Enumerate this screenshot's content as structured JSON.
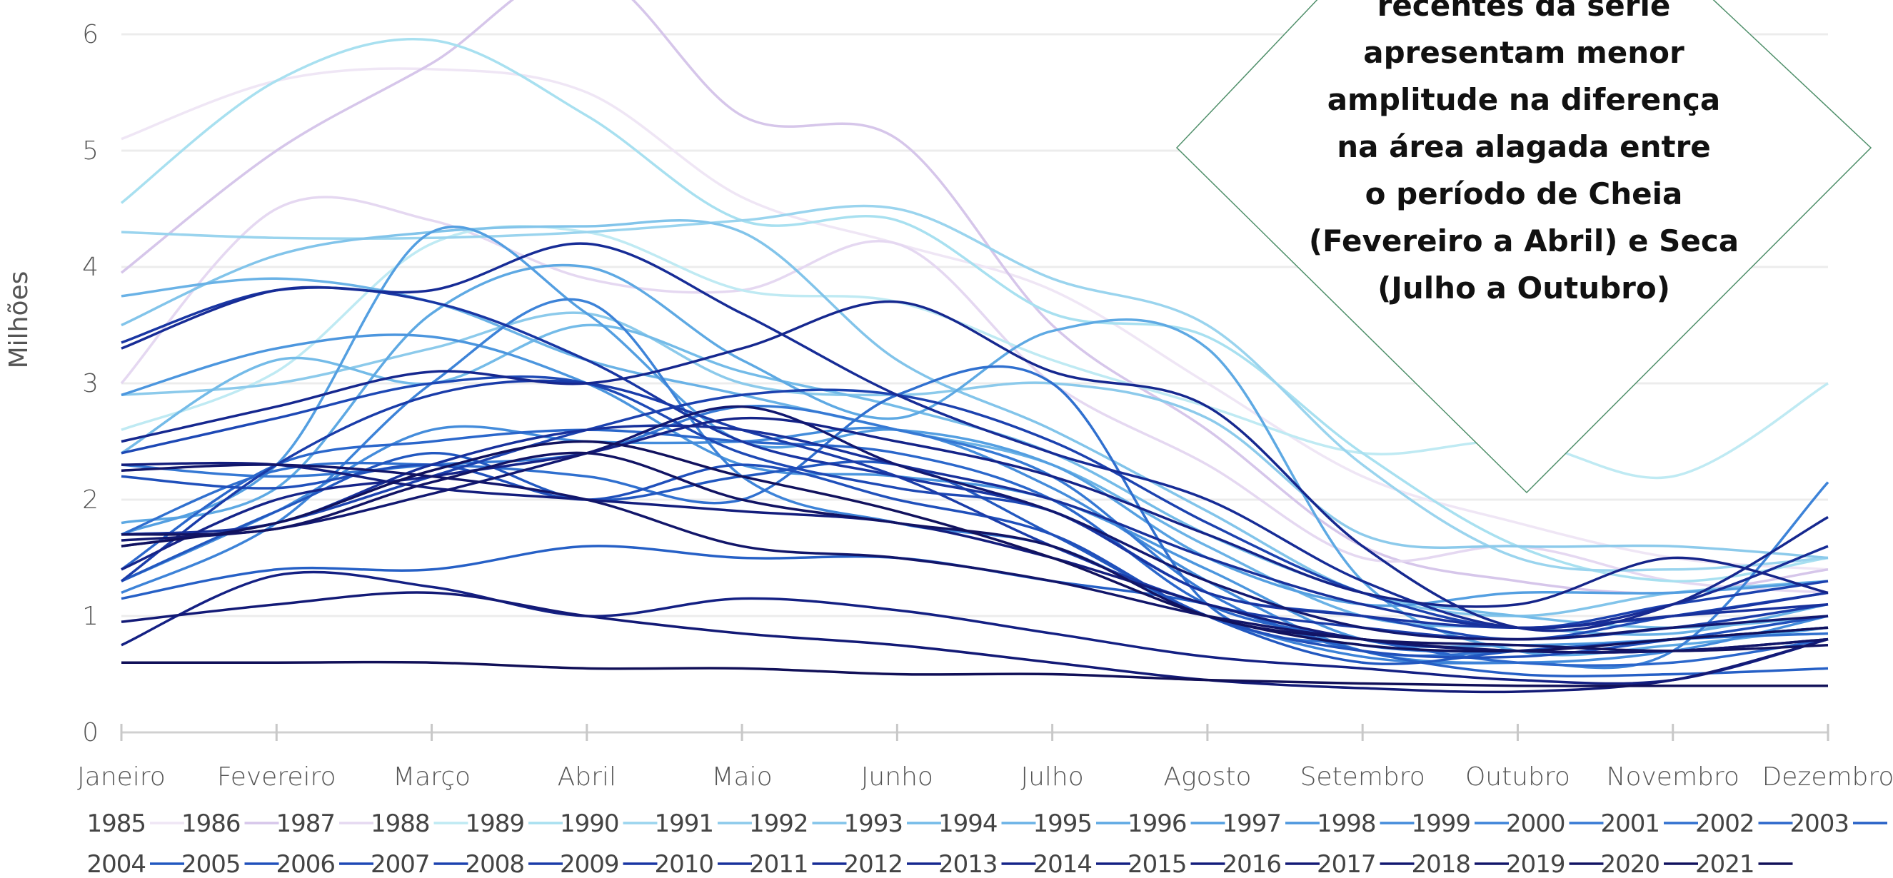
{
  "chart_data": {
    "type": "line",
    "ylabel": "Milhões",
    "ylim": [
      0,
      6
    ],
    "yticks": [
      0,
      1,
      2,
      3,
      4,
      5,
      6
    ],
    "categories": [
      "Janeiro",
      "Fevereiro",
      "Março",
      "Abril",
      "Maio",
      "Junho",
      "Julho",
      "Agosto",
      "Setembro",
      "Outubro",
      "Novembro",
      "Dezembro"
    ],
    "grid": true,
    "legend_position": "bottom",
    "annotation": [
      "recentes da série",
      "apresentam menor",
      "amplitude na diferença",
      "na área alagada entre",
      "o período de Cheia",
      "(Fevereiro a Abril) e Seca",
      "(Julho a Outubro)"
    ],
    "series": [
      {
        "name": "1985",
        "color": "#efe6f5",
        "values": [
          5.1,
          5.6,
          5.7,
          5.5,
          4.6,
          4.2,
          3.8,
          3.0,
          2.2,
          1.8,
          1.5,
          1.4
        ]
      },
      {
        "name": "1986",
        "color": "#d6c6ea",
        "values": [
          3.95,
          5.0,
          5.75,
          6.55,
          5.3,
          5.1,
          3.5,
          2.6,
          1.6,
          1.3,
          1.2,
          1.4
        ]
      },
      {
        "name": "1987",
        "color": "#e5d8f1",
        "values": [
          3.0,
          4.5,
          4.4,
          3.9,
          3.8,
          4.2,
          3.0,
          2.3,
          1.5,
          1.6,
          1.3,
          1.2
        ]
      },
      {
        "name": "1988",
        "color": "#bfeaf3",
        "values": [
          2.6,
          3.1,
          4.2,
          4.3,
          3.8,
          3.7,
          3.2,
          2.8,
          2.4,
          2.5,
          2.2,
          3.0
        ]
      },
      {
        "name": "1989",
        "color": "#a8e0f0",
        "values": [
          4.55,
          5.6,
          5.95,
          5.3,
          4.4,
          4.4,
          3.6,
          3.4,
          2.4,
          1.6,
          1.3,
          1.5
        ]
      },
      {
        "name": "1990",
        "color": "#9ad4ee",
        "values": [
          4.3,
          4.25,
          4.25,
          4.3,
          4.4,
          4.5,
          3.9,
          3.5,
          2.3,
          1.5,
          1.4,
          1.5
        ]
      },
      {
        "name": "1991",
        "color": "#8ccaeb",
        "values": [
          2.9,
          3.0,
          3.3,
          3.6,
          3.0,
          2.9,
          3.0,
          2.7,
          1.7,
          1.6,
          1.6,
          1.5
        ]
      },
      {
        "name": "1992",
        "color": "#82c4ea",
        "values": [
          3.5,
          4.1,
          4.3,
          4.35,
          4.3,
          3.2,
          2.6,
          1.9,
          1.2,
          1.0,
          1.2,
          1.3
        ]
      },
      {
        "name": "1993",
        "color": "#74bbe8",
        "values": [
          2.4,
          3.2,
          3.0,
          3.5,
          3.1,
          2.8,
          2.4,
          1.7,
          1.2,
          1.0,
          0.9,
          1.0
        ]
      },
      {
        "name": "1994",
        "color": "#6ab2e6",
        "values": [
          3.75,
          3.9,
          3.7,
          3.2,
          2.9,
          2.6,
          2.3,
          1.6,
          1.0,
          0.9,
          0.85,
          1.1
        ]
      },
      {
        "name": "1995",
        "color": "#5ea9e3",
        "values": [
          1.8,
          2.1,
          3.6,
          4.0,
          3.2,
          2.7,
          3.45,
          3.3,
          1.3,
          0.7,
          0.75,
          0.9
        ]
      },
      {
        "name": "1996",
        "color": "#549fe1",
        "values": [
          1.7,
          2.3,
          4.3,
          3.6,
          2.5,
          2.6,
          2.3,
          1.5,
          1.1,
          1.2,
          1.2,
          1.3
        ]
      },
      {
        "name": "1997",
        "color": "#4c96de",
        "values": [
          2.9,
          3.3,
          3.4,
          3.0,
          2.3,
          2.2,
          2.0,
          1.4,
          0.8,
          0.75,
          0.8,
          0.9
        ]
      },
      {
        "name": "1998",
        "color": "#448cdb",
        "values": [
          1.3,
          1.9,
          2.6,
          2.5,
          2.5,
          2.6,
          2.1,
          1.3,
          0.7,
          0.6,
          0.7,
          1.0
        ]
      },
      {
        "name": "1999",
        "color": "#3d83d8",
        "values": [
          1.2,
          1.8,
          3.0,
          3.7,
          2.2,
          1.8,
          1.6,
          1.0,
          0.65,
          0.6,
          0.7,
          2.15
        ]
      },
      {
        "name": "2000",
        "color": "#3679d4",
        "values": [
          2.3,
          2.2,
          2.3,
          2.4,
          2.8,
          2.6,
          2.2,
          1.2,
          0.7,
          0.7,
          0.8,
          0.9
        ]
      },
      {
        "name": "2001",
        "color": "#3070cf",
        "values": [
          1.7,
          2.25,
          2.3,
          2.2,
          2.0,
          2.9,
          3.0,
          1.1,
          0.75,
          0.7,
          0.8,
          0.85
        ]
      },
      {
        "name": "2002",
        "color": "#2b67cb",
        "values": [
          1.4,
          2.3,
          2.5,
          2.6,
          2.5,
          2.4,
          2.0,
          1.1,
          0.8,
          0.6,
          0.6,
          0.8
        ]
      },
      {
        "name": "2003",
        "color": "#2660c6",
        "values": [
          1.15,
          1.4,
          1.4,
          1.6,
          1.5,
          1.5,
          1.3,
          1.1,
          0.7,
          0.5,
          0.5,
          0.55
        ]
      },
      {
        "name": "2004",
        "color": "#2258c0",
        "values": [
          1.3,
          1.9,
          2.4,
          2.0,
          2.2,
          2.3,
          1.7,
          1.0,
          0.6,
          0.7,
          0.8,
          0.9
        ]
      },
      {
        "name": "2005",
        "color": "#2050bb",
        "values": [
          2.2,
          2.1,
          2.3,
          2.0,
          2.3,
          2.0,
          1.7,
          1.0,
          0.7,
          0.65,
          0.8,
          1.0
        ]
      },
      {
        "name": "2006",
        "color": "#1e49b5",
        "values": [
          2.4,
          2.7,
          3.0,
          3.0,
          2.4,
          2.1,
          1.9,
          1.2,
          1.0,
          0.8,
          1.0,
          1.2
        ]
      },
      {
        "name": "2007",
        "color": "#1c42af",
        "values": [
          1.6,
          1.8,
          2.2,
          2.6,
          2.9,
          2.9,
          2.5,
          1.8,
          1.2,
          0.9,
          1.1,
          1.3
        ]
      },
      {
        "name": "2008",
        "color": "#1a3ca9",
        "values": [
          1.3,
          2.3,
          2.9,
          3.0,
          2.6,
          2.2,
          1.6,
          1.1,
          0.9,
          0.8,
          0.9,
          1.1
        ]
      },
      {
        "name": "2009",
        "color": "#1936a3",
        "values": [
          3.35,
          3.8,
          3.7,
          3.2,
          2.5,
          2.2,
          1.9,
          1.2,
          1.0,
          0.9,
          1.0,
          1.2
        ]
      },
      {
        "name": "2010",
        "color": "#18319c",
        "values": [
          1.7,
          1.8,
          2.3,
          2.6,
          2.6,
          2.3,
          2.0,
          1.5,
          1.1,
          0.9,
          1.0,
          1.1
        ]
      },
      {
        "name": "2011",
        "color": "#172c96",
        "values": [
          3.3,
          3.8,
          3.8,
          4.2,
          3.6,
          2.9,
          2.4,
          2.0,
          1.3,
          0.9,
          1.1,
          1.6
        ]
      },
      {
        "name": "2012",
        "color": "#16288f",
        "values": [
          2.5,
          2.8,
          3.1,
          3.0,
          3.3,
          3.7,
          3.1,
          2.8,
          1.6,
          0.9,
          1.1,
          1.85
        ]
      },
      {
        "name": "2013",
        "color": "#152489",
        "values": [
          1.4,
          2.0,
          2.2,
          2.4,
          2.7,
          2.5,
          2.2,
          1.7,
          1.2,
          1.1,
          1.5,
          1.2
        ]
      },
      {
        "name": "2014",
        "color": "#142083",
        "values": [
          0.75,
          1.35,
          1.25,
          1.0,
          1.15,
          1.05,
          0.85,
          0.65,
          0.55,
          0.45,
          0.45,
          0.8
        ]
      },
      {
        "name": "2015",
        "color": "#131d7c",
        "values": [
          2.3,
          2.3,
          2.1,
          2.0,
          1.9,
          1.8,
          1.5,
          1.1,
          0.8,
          0.7,
          0.7,
          0.8
        ]
      },
      {
        "name": "2016",
        "color": "#131a76",
        "values": [
          0.95,
          1.1,
          1.2,
          1.0,
          0.85,
          0.75,
          0.6,
          0.45,
          0.38,
          0.35,
          0.45,
          0.8
        ]
      },
      {
        "name": "2017",
        "color": "#121870",
        "values": [
          1.65,
          1.75,
          2.05,
          2.4,
          2.8,
          2.3,
          1.9,
          1.3,
          0.9,
          0.8,
          0.9,
          1.0
        ]
      },
      {
        "name": "2018",
        "color": "#12166a",
        "values": [
          2.25,
          2.3,
          2.2,
          2.0,
          1.6,
          1.5,
          1.3,
          1.0,
          0.8,
          0.7,
          0.7,
          0.8
        ]
      },
      {
        "name": "2019",
        "color": "#121464",
        "values": [
          1.7,
          1.75,
          2.15,
          2.4,
          2.0,
          1.8,
          1.6,
          1.0,
          0.8,
          0.75,
          0.7,
          0.75
        ]
      },
      {
        "name": "2020",
        "color": "#11125e",
        "values": [
          1.6,
          1.8,
          2.25,
          2.5,
          2.2,
          1.9,
          1.5,
          1.0,
          0.75,
          0.7,
          0.8,
          0.9
        ]
      },
      {
        "name": "2021",
        "color": "#111058",
        "values": [
          0.6,
          0.6,
          0.6,
          0.55,
          0.55,
          0.5,
          0.5,
          0.45,
          0.42,
          0.4,
          0.4,
          0.4
        ]
      }
    ]
  }
}
